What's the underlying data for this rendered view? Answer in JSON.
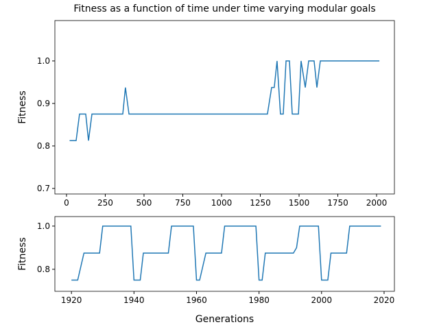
{
  "chart_data": [
    {
      "type": "line",
      "title": "Fitness as a function of time under time varying modular goals",
      "ylabel": "Fitness",
      "color": "#1f77b4",
      "x": [
        20,
        62,
        84,
        124,
        142,
        164,
        363,
        380,
        403,
        1296,
        1323,
        1340,
        1358,
        1380,
        1398,
        1416,
        1438,
        1456,
        1496,
        1513,
        1540,
        1562,
        1597,
        1615,
        1637,
        2018
      ],
      "values": [
        0.8125,
        0.8125,
        0.875,
        0.875,
        0.8125,
        0.875,
        0.875,
        0.9375,
        0.875,
        0.875,
        0.9375,
        0.9375,
        1,
        0.875,
        0.875,
        1,
        1,
        0.875,
        0.875,
        1,
        0.9375,
        1,
        1,
        0.9375,
        1,
        1
      ],
      "xlim": [
        -75,
        2115
      ],
      "ylim": [
        0.687,
        1.095
      ],
      "xticks": [
        0,
        250,
        500,
        750,
        1000,
        1250,
        1500,
        1750,
        2000
      ],
      "yticks": [
        0.7,
        0.8,
        0.9,
        {
          "value": 1,
          "label": "1.0"
        }
      ]
    },
    {
      "type": "line",
      "ylabel": "Fitness",
      "xlabel": "Generations",
      "color": "#1f77b4",
      "x": [
        1920,
        1922,
        1924,
        1929,
        1930,
        1939,
        1940,
        1942,
        1943,
        1951,
        1952,
        1959,
        1960,
        1961,
        1963,
        1968,
        1969,
        1979,
        1980,
        1981,
        1982,
        1991,
        1992,
        1993,
        1999,
        2000,
        2002,
        2003,
        2008,
        2009,
        2019
      ],
      "values": [
        0.75,
        0.75,
        0.875,
        0.875,
        1,
        1,
        0.75,
        0.75,
        0.875,
        0.875,
        1,
        1,
        0.75,
        0.75,
        0.875,
        0.875,
        1,
        1,
        0.75,
        0.75,
        0.875,
        0.875,
        0.9,
        1,
        1,
        0.75,
        0.75,
        0.875,
        0.875,
        1,
        1
      ],
      "xlim": [
        1914.7,
        2023.3
      ],
      "ylim": [
        0.698,
        1.044
      ],
      "xticks": [
        1920,
        1940,
        1960,
        1980,
        2000,
        2020
      ],
      "yticks": [
        0.8,
        {
          "value": 1,
          "label": "1.0"
        }
      ]
    }
  ]
}
